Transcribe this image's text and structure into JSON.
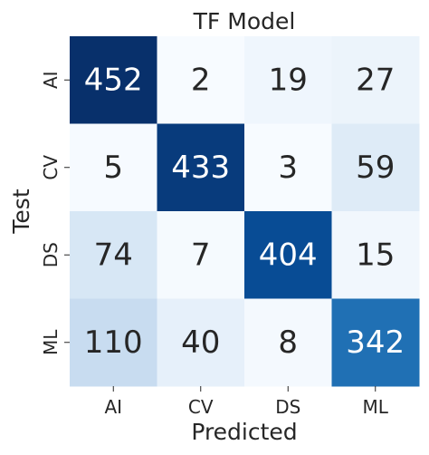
{
  "chart_data": {
    "type": "heatmap",
    "title": "TF Model",
    "xlabel": "Predicted",
    "ylabel": "Test",
    "x_categories": [
      "AI",
      "CV",
      "DS",
      "ML"
    ],
    "y_categories": [
      "AI",
      "CV",
      "DS",
      "ML"
    ],
    "values": [
      [
        452,
        2,
        19,
        27
      ],
      [
        5,
        433,
        3,
        59
      ],
      [
        74,
        7,
        404,
        15
      ],
      [
        110,
        40,
        8,
        342
      ]
    ],
    "colormap": "Blues",
    "color_range": [
      2,
      452
    ],
    "colorbar": false
  }
}
